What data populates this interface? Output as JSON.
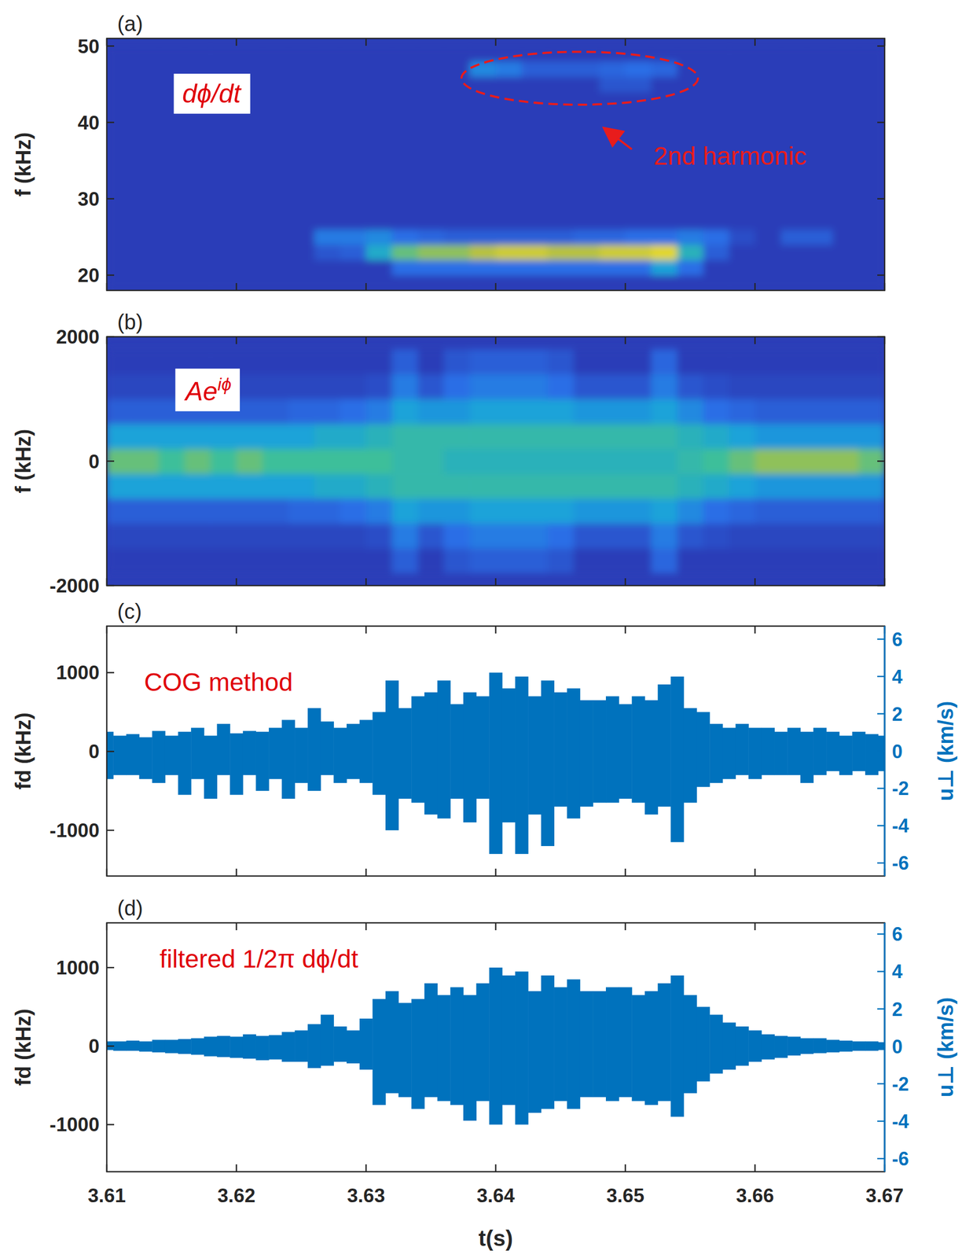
{
  "chart_data": [
    {
      "type": "heatmap",
      "panel": "(a)",
      "ylabel": "f (kHz)",
      "annotation": "dϕ/dt",
      "callout": "2nd harmonic",
      "xlim": [
        3.61,
        3.67
      ],
      "xticks": [
        3.61,
        3.62,
        3.63,
        3.64,
        3.65,
        3.66,
        3.67
      ],
      "ylim": [
        18,
        51
      ],
      "yticks": [
        20,
        30,
        40,
        50
      ],
      "tick_labels": "y",
      "zlim": [
        0,
        1
      ],
      "x": [
        3.611,
        3.613,
        3.615,
        3.617,
        3.619,
        3.621,
        3.623,
        3.625,
        3.627,
        3.629,
        3.631,
        3.633,
        3.635,
        3.637,
        3.639,
        3.641,
        3.643,
        3.645,
        3.647,
        3.649,
        3.651,
        3.653,
        3.655,
        3.657,
        3.659,
        3.661,
        3.663,
        3.665,
        3.667,
        3.669
      ],
      "y": [
        19,
        21,
        23,
        25,
        27,
        29,
        31,
        33,
        35,
        37,
        39,
        41,
        43,
        45,
        47,
        49
      ],
      "z": [
        [
          0,
          0,
          0,
          0,
          0,
          0,
          0,
          0,
          0,
          0,
          0,
          0,
          0,
          0,
          0,
          0,
          0,
          0,
          0,
          0,
          0,
          0,
          0,
          0,
          0,
          0,
          0,
          0,
          0,
          0
        ],
        [
          0,
          0,
          0,
          0,
          0,
          0,
          0,
          0,
          0,
          0,
          0,
          0.3,
          0.3,
          0.3,
          0.3,
          0.3,
          0.3,
          0.3,
          0.3,
          0.3,
          0.3,
          0.5,
          0.3,
          0,
          0,
          0,
          0,
          0,
          0,
          0
        ],
        [
          0,
          0,
          0,
          0,
          0,
          0,
          0,
          0,
          0.15,
          0.2,
          0.55,
          0.75,
          0.8,
          0.8,
          0.85,
          0.9,
          0.9,
          0.85,
          0.85,
          0.9,
          0.9,
          0.95,
          0.6,
          0.2,
          0,
          0,
          0,
          0,
          0,
          0
        ],
        [
          0,
          0,
          0,
          0,
          0,
          0,
          0,
          0,
          0.35,
          0.35,
          0.4,
          0.3,
          0.25,
          0.2,
          0.2,
          0.2,
          0.2,
          0.2,
          0.25,
          0.25,
          0.3,
          0.3,
          0.35,
          0.3,
          0.1,
          0,
          0.2,
          0.2,
          0,
          0
        ],
        [
          0,
          0,
          0,
          0,
          0,
          0,
          0,
          0,
          0,
          0,
          0,
          0,
          0,
          0,
          0,
          0,
          0,
          0,
          0,
          0,
          0,
          0,
          0,
          0,
          0,
          0,
          0,
          0,
          0,
          0
        ],
        [
          0,
          0,
          0,
          0,
          0,
          0,
          0,
          0,
          0,
          0,
          0,
          0,
          0,
          0,
          0,
          0,
          0,
          0,
          0,
          0,
          0,
          0,
          0,
          0,
          0,
          0,
          0,
          0,
          0,
          0
        ],
        [
          0,
          0,
          0,
          0,
          0,
          0,
          0,
          0,
          0,
          0,
          0,
          0,
          0,
          0,
          0,
          0,
          0,
          0,
          0,
          0,
          0,
          0,
          0,
          0,
          0,
          0,
          0,
          0,
          0,
          0
        ],
        [
          0,
          0,
          0,
          0,
          0,
          0,
          0,
          0,
          0,
          0,
          0,
          0,
          0,
          0,
          0,
          0,
          0,
          0,
          0,
          0,
          0,
          0,
          0,
          0,
          0,
          0,
          0,
          0,
          0,
          0
        ],
        [
          0,
          0,
          0,
          0,
          0,
          0,
          0,
          0,
          0,
          0,
          0,
          0,
          0,
          0,
          0,
          0,
          0,
          0,
          0,
          0,
          0,
          0,
          0,
          0,
          0,
          0,
          0,
          0,
          0,
          0
        ],
        [
          0,
          0,
          0,
          0,
          0,
          0,
          0,
          0,
          0,
          0,
          0,
          0,
          0,
          0,
          0,
          0,
          0,
          0,
          0,
          0,
          0,
          0,
          0,
          0,
          0,
          0,
          0,
          0,
          0,
          0
        ],
        [
          0,
          0,
          0,
          0,
          0,
          0,
          0,
          0,
          0,
          0,
          0,
          0,
          0,
          0,
          0,
          0,
          0,
          0,
          0,
          0,
          0,
          0,
          0,
          0,
          0,
          0,
          0,
          0,
          0,
          0
        ],
        [
          0,
          0,
          0,
          0,
          0,
          0,
          0,
          0,
          0,
          0,
          0,
          0,
          0,
          0,
          0,
          0,
          0,
          0,
          0,
          0,
          0,
          0,
          0,
          0,
          0,
          0,
          0,
          0,
          0,
          0
        ],
        [
          0,
          0,
          0,
          0,
          0,
          0,
          0,
          0,
          0,
          0,
          0,
          0,
          0,
          0,
          0,
          0,
          0,
          0,
          0,
          0,
          0,
          0,
          0,
          0,
          0,
          0,
          0,
          0,
          0,
          0
        ],
        [
          0,
          0,
          0,
          0,
          0,
          0,
          0,
          0,
          0,
          0,
          0,
          0,
          0,
          0,
          0,
          0,
          0,
          0,
          0,
          0.15,
          0.15,
          0,
          0,
          0,
          0,
          0,
          0,
          0,
          0,
          0
        ],
        [
          0,
          0,
          0,
          0,
          0,
          0,
          0,
          0,
          0,
          0,
          0,
          0,
          0,
          0,
          0.4,
          0.35,
          0.2,
          0.2,
          0.2,
          0.25,
          0.3,
          0.25,
          0,
          0,
          0,
          0,
          0,
          0,
          0,
          0
        ],
        [
          0,
          0,
          0,
          0,
          0,
          0,
          0,
          0,
          0,
          0,
          0,
          0,
          0,
          0,
          0,
          0,
          0,
          0,
          0,
          0,
          0,
          0,
          0,
          0,
          0,
          0,
          0,
          0,
          0,
          0
        ]
      ]
    },
    {
      "type": "heatmap",
      "panel": "(b)",
      "ylabel": "f (kHz)",
      "annotation": "Ae",
      "annotation_sup": "iϕ",
      "xlim": [
        3.61,
        3.67
      ],
      "xticks": [
        3.61,
        3.62,
        3.63,
        3.64,
        3.65,
        3.66,
        3.67
      ],
      "ylim": [
        -2000,
        2000
      ],
      "yticks": [
        -2000,
        0,
        2000
      ],
      "tick_labels": "y",
      "zlim": [
        0,
        1
      ],
      "x": [
        3.611,
        3.613,
        3.615,
        3.617,
        3.619,
        3.621,
        3.623,
        3.625,
        3.627,
        3.629,
        3.631,
        3.633,
        3.635,
        3.637,
        3.639,
        3.641,
        3.643,
        3.645,
        3.647,
        3.649,
        3.651,
        3.653,
        3.655,
        3.657,
        3.659,
        3.661,
        3.663,
        3.665,
        3.667,
        3.669
      ],
      "y": [
        -1600,
        -1200,
        -800,
        -400,
        0,
        400,
        800,
        1200,
        1600
      ],
      "z": [
        [
          0,
          0,
          0,
          0,
          0,
          0,
          0,
          0,
          0,
          0,
          0,
          0.2,
          0,
          0.15,
          0.2,
          0.2,
          0.2,
          0.15,
          0,
          0,
          0,
          0.25,
          0,
          0,
          0,
          0,
          0,
          0,
          0,
          0
        ],
        [
          0.05,
          0.05,
          0.05,
          0.05,
          0.05,
          0.05,
          0.05,
          0.05,
          0.05,
          0.05,
          0.1,
          0.35,
          0.15,
          0.3,
          0.35,
          0.35,
          0.35,
          0.3,
          0.15,
          0.15,
          0.15,
          0.35,
          0.15,
          0.1,
          0.05,
          0.05,
          0.05,
          0.05,
          0.05,
          0.05
        ],
        [
          0.2,
          0.2,
          0.2,
          0.2,
          0.2,
          0.2,
          0.2,
          0.25,
          0.25,
          0.3,
          0.35,
          0.5,
          0.45,
          0.45,
          0.5,
          0.5,
          0.5,
          0.5,
          0.45,
          0.45,
          0.45,
          0.5,
          0.4,
          0.3,
          0.25,
          0.2,
          0.2,
          0.2,
          0.2,
          0.2
        ],
        [
          0.5,
          0.5,
          0.5,
          0.5,
          0.5,
          0.5,
          0.5,
          0.5,
          0.55,
          0.55,
          0.6,
          0.65,
          0.65,
          0.65,
          0.65,
          0.65,
          0.65,
          0.65,
          0.65,
          0.65,
          0.65,
          0.65,
          0.6,
          0.55,
          0.5,
          0.45,
          0.45,
          0.45,
          0.45,
          0.45
        ],
        [
          0.75,
          0.75,
          0.7,
          0.75,
          0.7,
          0.75,
          0.7,
          0.7,
          0.7,
          0.7,
          0.7,
          0.65,
          0.65,
          0.6,
          0.6,
          0.6,
          0.6,
          0.6,
          0.6,
          0.6,
          0.6,
          0.6,
          0.65,
          0.7,
          0.75,
          0.8,
          0.8,
          0.8,
          0.8,
          0.75
        ],
        [
          0.5,
          0.5,
          0.5,
          0.5,
          0.5,
          0.5,
          0.5,
          0.5,
          0.55,
          0.55,
          0.6,
          0.65,
          0.65,
          0.65,
          0.65,
          0.65,
          0.65,
          0.65,
          0.65,
          0.65,
          0.65,
          0.65,
          0.6,
          0.55,
          0.5,
          0.45,
          0.45,
          0.45,
          0.45,
          0.45
        ],
        [
          0.2,
          0.2,
          0.2,
          0.2,
          0.2,
          0.2,
          0.2,
          0.25,
          0.25,
          0.3,
          0.35,
          0.5,
          0.45,
          0.45,
          0.5,
          0.5,
          0.5,
          0.5,
          0.45,
          0.45,
          0.45,
          0.5,
          0.4,
          0.3,
          0.25,
          0.2,
          0.2,
          0.2,
          0.2,
          0.2
        ],
        [
          0.05,
          0.05,
          0.05,
          0.05,
          0.05,
          0.05,
          0.05,
          0.05,
          0.05,
          0.05,
          0.1,
          0.35,
          0.15,
          0.3,
          0.35,
          0.35,
          0.35,
          0.3,
          0.15,
          0.15,
          0.15,
          0.35,
          0.15,
          0.1,
          0.05,
          0.05,
          0.05,
          0.05,
          0.05,
          0.05
        ],
        [
          0,
          0,
          0,
          0,
          0,
          0,
          0,
          0,
          0,
          0,
          0,
          0.2,
          0,
          0.15,
          0.2,
          0.2,
          0.2,
          0.15,
          0,
          0,
          0,
          0.25,
          0,
          0,
          0,
          0,
          0,
          0,
          0,
          0
        ]
      ]
    },
    {
      "type": "band",
      "panel": "(c)",
      "ylabel": "fd (kHz)",
      "y2label": "u⊥ (km/s)",
      "annotation": "COG method",
      "color": "#0072bd",
      "xlim": [
        3.61,
        3.67
      ],
      "xticks": [
        3.61,
        3.62,
        3.63,
        3.64,
        3.65,
        3.66,
        3.67
      ],
      "ylim": [
        -1580,
        1590
      ],
      "yticks": [
        -1000,
        0,
        1000
      ],
      "y2lim": [
        -6.7,
        6.7
      ],
      "y2ticks": [
        -6,
        -4,
        -2,
        0,
        2,
        4,
        6
      ],
      "tick_labels": "y",
      "x": [
        3.61,
        3.611,
        3.612,
        3.613,
        3.614,
        3.615,
        3.616,
        3.617,
        3.618,
        3.619,
        3.62,
        3.621,
        3.622,
        3.623,
        3.624,
        3.625,
        3.626,
        3.627,
        3.628,
        3.629,
        3.63,
        3.631,
        3.632,
        3.633,
        3.634,
        3.635,
        3.636,
        3.637,
        3.638,
        3.639,
        3.64,
        3.641,
        3.642,
        3.643,
        3.644,
        3.645,
        3.646,
        3.647,
        3.648,
        3.649,
        3.65,
        3.651,
        3.652,
        3.653,
        3.654,
        3.655,
        3.656,
        3.657,
        3.658,
        3.659,
        3.66,
        3.661,
        3.662,
        3.663,
        3.664,
        3.665,
        3.666,
        3.667,
        3.668,
        3.669,
        3.67
      ],
      "upper": [
        250,
        200,
        220,
        180,
        260,
        200,
        250,
        300,
        200,
        350,
        230,
        260,
        250,
        300,
        400,
        300,
        550,
        380,
        300,
        350,
        400,
        500,
        900,
        550,
        700,
        750,
        900,
        600,
        750,
        700,
        1000,
        800,
        950,
        700,
        900,
        750,
        800,
        650,
        650,
        700,
        600,
        700,
        650,
        850,
        950,
        550,
        500,
        350,
        300,
        350,
        300,
        300,
        250,
        300,
        250,
        300,
        250,
        200,
        250,
        220,
        200
      ],
      "lower": [
        -350,
        -300,
        -300,
        -350,
        -400,
        -300,
        -550,
        -350,
        -600,
        -300,
        -550,
        -300,
        -500,
        -350,
        -600,
        -400,
        -500,
        -300,
        -400,
        -350,
        -400,
        -550,
        -1000,
        -600,
        -650,
        -800,
        -850,
        -600,
        -900,
        -600,
        -1300,
        -900,
        -1300,
        -800,
        -1200,
        -700,
        -850,
        -700,
        -650,
        -650,
        -600,
        -650,
        -800,
        -700,
        -1150,
        -650,
        -450,
        -400,
        -350,
        -300,
        -350,
        -300,
        -300,
        -300,
        -400,
        -300,
        -250,
        -300,
        -250,
        -300,
        -250
      ]
    },
    {
      "type": "band",
      "panel": "(d)",
      "ylabel": "fd (kHz)",
      "y2label": "u⊥ (km/s)",
      "xlabel": "t(s)",
      "annotation": "filtered 1/2π dϕ/dt",
      "color": "#0072bd",
      "xlim": [
        3.61,
        3.67
      ],
      "xticks": [
        3.61,
        3.62,
        3.63,
        3.64,
        3.65,
        3.66,
        3.67
      ],
      "ylim": [
        -1600,
        1570
      ],
      "yticks": [
        -1000,
        0,
        1000
      ],
      "y2lim": [
        -6.7,
        6.6
      ],
      "y2ticks": [
        -6,
        -4,
        -2,
        0,
        2,
        4,
        6
      ],
      "x": [
        3.61,
        3.611,
        3.612,
        3.613,
        3.614,
        3.615,
        3.616,
        3.617,
        3.618,
        3.619,
        3.62,
        3.621,
        3.622,
        3.623,
        3.624,
        3.625,
        3.626,
        3.627,
        3.628,
        3.629,
        3.63,
        3.631,
        3.632,
        3.633,
        3.634,
        3.635,
        3.636,
        3.637,
        3.638,
        3.639,
        3.64,
        3.641,
        3.642,
        3.643,
        3.644,
        3.645,
        3.646,
        3.647,
        3.648,
        3.649,
        3.65,
        3.651,
        3.652,
        3.653,
        3.654,
        3.655,
        3.656,
        3.657,
        3.658,
        3.659,
        3.66,
        3.661,
        3.662,
        3.663,
        3.664,
        3.665,
        3.666,
        3.667,
        3.668,
        3.669,
        3.67
      ],
      "upper": [
        60,
        60,
        70,
        60,
        80,
        80,
        90,
        100,
        120,
        130,
        120,
        150,
        130,
        140,
        180,
        200,
        280,
        400,
        250,
        200,
        350,
        600,
        700,
        550,
        600,
        800,
        650,
        750,
        650,
        800,
        1000,
        900,
        950,
        700,
        900,
        750,
        850,
        700,
        700,
        750,
        750,
        650,
        700,
        800,
        900,
        650,
        500,
        400,
        300,
        250,
        200,
        150,
        130,
        120,
        100,
        100,
        80,
        70,
        60,
        60,
        50
      ],
      "lower": [
        -50,
        -60,
        -60,
        -70,
        -80,
        -90,
        -100,
        -110,
        -130,
        -140,
        -150,
        -160,
        -180,
        -170,
        -200,
        -200,
        -280,
        -250,
        -200,
        -220,
        -300,
        -750,
        -600,
        -650,
        -800,
        -650,
        -700,
        -750,
        -950,
        -700,
        -1000,
        -750,
        -1000,
        -850,
        -800,
        -700,
        -800,
        -650,
        -650,
        -700,
        -650,
        -700,
        -750,
        -700,
        -900,
        -600,
        -450,
        -350,
        -300,
        -250,
        -200,
        -170,
        -150,
        -120,
        -100,
        -90,
        -80,
        -70,
        -60,
        -60,
        -50
      ]
    }
  ]
}
